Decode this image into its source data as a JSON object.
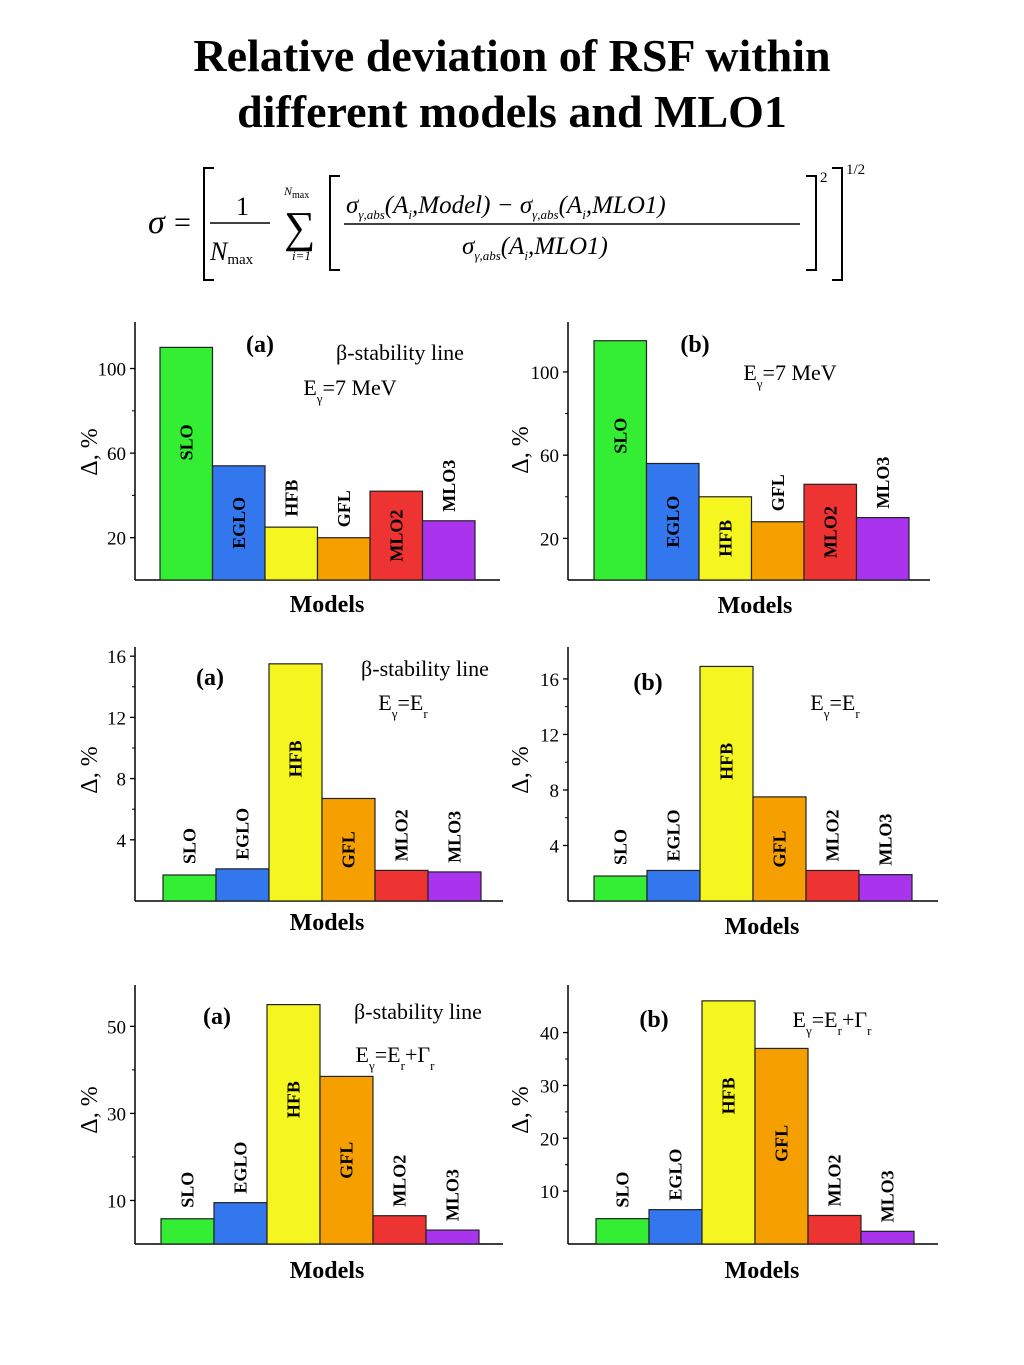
{
  "title": {
    "line1": "Relative deviation of  RSF within",
    "line2": "different models and MLO1"
  },
  "formula": {
    "lhs": "σ",
    "equals": "=",
    "one": "1",
    "nmax": "N",
    "max_sub": "max",
    "sum_top": "N",
    "sum_bottom": "i=1",
    "sum_sign": "∑",
    "sigma": "σ",
    "sub": "γ,abs",
    "arg_model": "(A",
    "i_sub": "i",
    "model_tail": ",Model) −",
    "mlo_tail": ",MLO1)",
    "exp2": "2",
    "exp_half": "1/2"
  },
  "colors": {
    "SLO": "#33ee33",
    "EGLO": "#3377ee",
    "HFB": "#f5f520",
    "GFL": "#f5a000",
    "MLO2": "#ee3333",
    "MLO3": "#aa33ee"
  },
  "chart_data": [
    {
      "type": "bar",
      "panel": "(a)",
      "annotation": "β-stability line",
      "energy_label": "Eγ=7 MeV",
      "categories": [
        "SLO",
        "EGLO",
        "HFB",
        "GFL",
        "MLO2",
        "MLO3"
      ],
      "values": [
        110,
        54,
        25,
        20,
        42,
        28
      ],
      "xlabel": "Models",
      "ylabel": "Δ, %",
      "yticks": [
        20,
        60,
        100
      ],
      "ylim": [
        0,
        122
      ]
    },
    {
      "type": "bar",
      "panel": "(b)",
      "annotation": "",
      "energy_label": "Eγ=7 MeV",
      "categories": [
        "SLO",
        "EGLO",
        "HFB",
        "GFL",
        "MLO2",
        "MLO3"
      ],
      "values": [
        115,
        56,
        40,
        28,
        46,
        30
      ],
      "xlabel": "Models",
      "ylabel": "Δ, %",
      "yticks": [
        20,
        60,
        100
      ],
      "ylim": [
        0,
        124
      ]
    },
    {
      "type": "bar",
      "panel": "(a)",
      "annotation": "β-stability line",
      "energy_label": "Eγ=Er",
      "categories": [
        "SLO",
        "EGLO",
        "HFB",
        "GFL",
        "MLO2",
        "MLO3"
      ],
      "values": [
        1.7,
        2.1,
        15.5,
        6.7,
        2.0,
        1.9
      ],
      "xlabel": "Models",
      "ylabel": "Δ, %",
      "yticks": [
        4,
        8,
        12,
        16
      ],
      "ylim": [
        0,
        16.6
      ]
    },
    {
      "type": "bar",
      "panel": "(b)",
      "annotation": "",
      "energy_label": "Eγ=Er",
      "categories": [
        "SLO",
        "EGLO",
        "HFB",
        "GFL",
        "MLO2",
        "MLO3"
      ],
      "values": [
        1.8,
        2.2,
        16.9,
        7.5,
        2.2,
        1.9
      ],
      "xlabel": "Models",
      "ylabel": "Δ, %",
      "yticks": [
        4,
        8,
        12,
        16
      ],
      "ylim": [
        0,
        18.3
      ]
    },
    {
      "type": "bar",
      "panel": "(a)",
      "annotation": "β-stability line",
      "energy_label": "Eγ=Er+Γr",
      "categories": [
        "SLO",
        "EGLO",
        "HFB",
        "GFL",
        "MLO2",
        "MLO3"
      ],
      "values": [
        5.8,
        9.5,
        55,
        38.5,
        6.5,
        3.2
      ],
      "xlabel": "Models",
      "ylabel": "Δ, %",
      "yticks": [
        10,
        30,
        50
      ],
      "ylim": [
        0,
        59.5
      ]
    },
    {
      "type": "bar",
      "panel": "(b)",
      "annotation": "",
      "energy_label": "Eγ=Er+Γr",
      "categories": [
        "SLO",
        "EGLO",
        "HFB",
        "GFL",
        "MLO2",
        "MLO3"
      ],
      "values": [
        4.8,
        6.5,
        46,
        37,
        5.4,
        2.4
      ],
      "xlabel": "Models",
      "ylabel": "Δ, %",
      "yticks": [
        10,
        20,
        30,
        40
      ],
      "ylim": [
        0,
        49
      ]
    }
  ]
}
